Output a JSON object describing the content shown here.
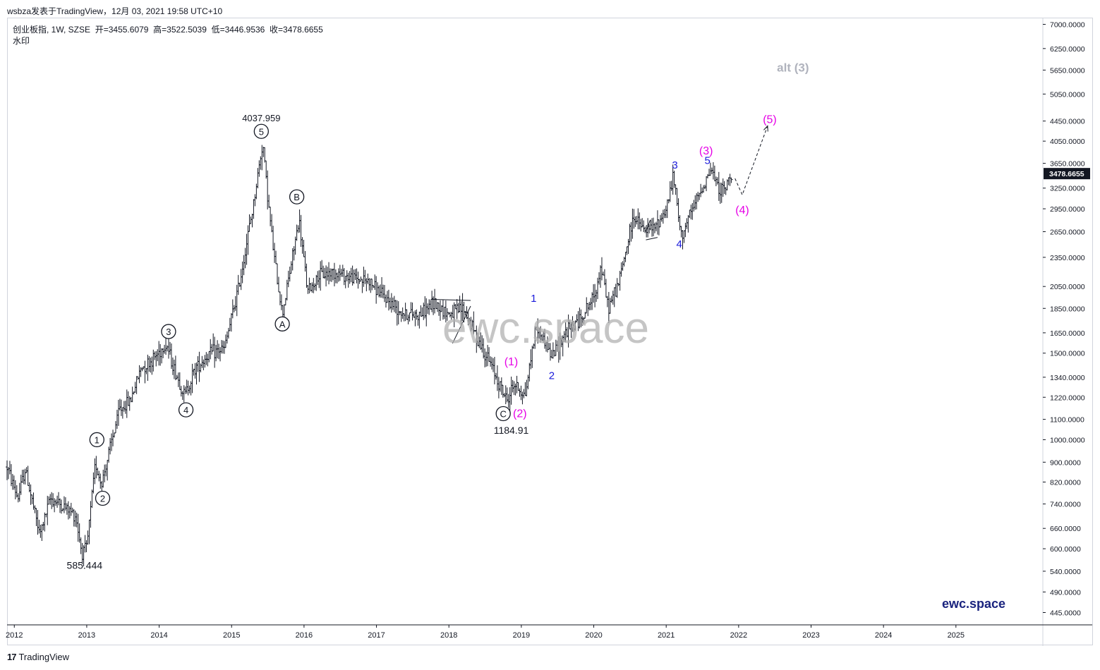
{
  "header": {
    "publisher": "wsbza发表于TradingView，12月 03, 2021 19:58 UTC+10"
  },
  "legend": {
    "title_line": "创业板指, 1W, SZSE",
    "open_label": "开",
    "open": "3455.6079",
    "high_label": "高",
    "high": "3522.5039",
    "low_label": "低",
    "low": "3446.9536",
    "close_label": "收",
    "close": "3478.6655",
    "sub": "水印"
  },
  "watermark": "ewc.space",
  "brand": "ewc.space",
  "footer": {
    "logo": "17",
    "name": "TradingView"
  },
  "colors": {
    "candle": "#131722",
    "blue_labels": "#1a1adb",
    "magenta_labels": "#e600e6",
    "alt_label": "#b0b3bd",
    "price_tag_bg": "#131722"
  },
  "chart_data": {
    "type": "ohlc-bar",
    "timeframe": "1W",
    "y_scale": "log",
    "ylim": [
      420,
      7200
    ],
    "xlim": [
      2011.9,
      2026.2
    ],
    "x_ticks": [
      "2012",
      "2013",
      "2014",
      "2015",
      "2016",
      "2017",
      "2018",
      "2019",
      "2020",
      "2021",
      "2022",
      "2023",
      "2024",
      "2025"
    ],
    "y_ticks": [
      "7000.0000",
      "6250.0000",
      "5650.0000",
      "5050.0000",
      "4450.0000",
      "4050.0000",
      "3650.0000",
      "3250.0000",
      "2950.0000",
      "2650.0000",
      "2350.0000",
      "2050.0000",
      "1850.0000",
      "1650.0000",
      "1500.0000",
      "1340.0000",
      "1220.0000",
      "1100.0000",
      "1000.0000",
      "900.0000",
      "820.0000",
      "740.0000",
      "660.0000",
      "600.0000",
      "540.0000",
      "490.0000",
      "445.0000"
    ],
    "last_price": "3478.6655",
    "series_path": [
      [
        2011.9,
        880
      ],
      [
        2012.05,
        760
      ],
      [
        2012.15,
        870
      ],
      [
        2012.35,
        640
      ],
      [
        2012.5,
        760
      ],
      [
        2012.75,
        720
      ],
      [
        2012.85,
        700
      ],
      [
        2012.93,
        590
      ],
      [
        2013.0,
        600
      ],
      [
        2013.12,
        900
      ],
      [
        2013.2,
        810
      ],
      [
        2013.45,
        1150
      ],
      [
        2013.6,
        1200
      ],
      [
        2013.75,
        1400
      ],
      [
        2013.9,
        1450
      ],
      [
        2014.1,
        1570
      ],
      [
        2014.2,
        1400
      ],
      [
        2014.35,
        1230
      ],
      [
        2014.5,
        1400
      ],
      [
        2014.7,
        1500
      ],
      [
        2014.9,
        1530
      ],
      [
        2015.1,
        2050
      ],
      [
        2015.3,
        3000
      ],
      [
        2015.43,
        4040
      ],
      [
        2015.5,
        3100
      ],
      [
        2015.58,
        2400
      ],
      [
        2015.7,
        1800
      ],
      [
        2015.85,
        2400
      ],
      [
        2015.93,
        2800
      ],
      [
        2016.05,
        2000
      ],
      [
        2016.2,
        2150
      ],
      [
        2016.4,
        2200
      ],
      [
        2016.6,
        2150
      ],
      [
        2016.9,
        2100
      ],
      [
        2017.1,
        1950
      ],
      [
        2017.4,
        1800
      ],
      [
        2017.6,
        1800
      ],
      [
        2017.8,
        1900
      ],
      [
        2018.0,
        1800
      ],
      [
        2018.2,
        1850
      ],
      [
        2018.4,
        1600
      ],
      [
        2018.6,
        1400
      ],
      [
        2018.8,
        1200
      ],
      [
        2018.9,
        1300
      ],
      [
        2019.05,
        1230
      ],
      [
        2019.2,
        1700
      ],
      [
        2019.35,
        1560
      ],
      [
        2019.42,
        1470
      ],
      [
        2019.6,
        1650
      ],
      [
        2019.8,
        1750
      ],
      [
        2020.0,
        1950
      ],
      [
        2020.1,
        2250
      ],
      [
        2020.2,
        1850
      ],
      [
        2020.35,
        2100
      ],
      [
        2020.5,
        2650
      ],
      [
        2020.55,
        2850
      ],
      [
        2020.7,
        2650
      ],
      [
        2020.85,
        2700
      ],
      [
        2021.0,
        2950
      ],
      [
        2021.1,
        3450
      ],
      [
        2021.2,
        2600
      ],
      [
        2021.35,
        2900
      ],
      [
        2021.55,
        3400
      ],
      [
        2021.62,
        3550
      ],
      [
        2021.7,
        3300
      ],
      [
        2021.8,
        3200
      ],
      [
        2021.9,
        3478
      ]
    ],
    "projection": [
      [
        2021.95,
        3400
      ],
      [
        2022.05,
        3150
      ],
      [
        2022.4,
        4350
      ]
    ],
    "triangles": [
      {
        "top": [
          [
            2017.75,
            1930
          ],
          [
            2018.3,
            1920
          ]
        ],
        "bottom": [
          [
            2018.05,
            1570
          ],
          [
            2018.3,
            1870
          ]
        ]
      },
      {
        "top": [
          [
            2020.72,
            2650
          ],
          [
            2020.78,
            2800
          ]
        ],
        "bottom": [
          [
            2020.72,
            2550
          ],
          [
            2020.88,
            2580
          ]
        ]
      }
    ],
    "annotations": [
      {
        "text": "1",
        "circled": true,
        "x": 2013.14,
        "y": 1000,
        "color": "#131722"
      },
      {
        "text": "2",
        "circled": true,
        "x": 2013.22,
        "y": 760,
        "color": "#131722"
      },
      {
        "text": "3",
        "circled": true,
        "x": 2014.13,
        "y": 1660,
        "color": "#131722"
      },
      {
        "text": "4",
        "circled": true,
        "x": 2014.37,
        "y": 1150,
        "color": "#131722"
      },
      {
        "text": "5",
        "circled": true,
        "x": 2015.41,
        "y": 4240,
        "color": "#131722"
      },
      {
        "text": "A",
        "circled": true,
        "x": 2015.7,
        "y": 1720,
        "color": "#131722"
      },
      {
        "text": "B",
        "circled": true,
        "x": 2015.9,
        "y": 3120,
        "color": "#131722"
      },
      {
        "text": "C",
        "circled": true,
        "x": 2018.75,
        "y": 1130,
        "color": "#131722"
      },
      {
        "text": "4037.959",
        "circled": false,
        "x": 2015.41,
        "y": 4520,
        "color": "#131722",
        "size": 13
      },
      {
        "text": "585.444",
        "circled": false,
        "x": 2012.97,
        "y": 555,
        "color": "#131722",
        "size": 14
      },
      {
        "text": "1184.91",
        "circled": false,
        "x": 2018.86,
        "y": 1045,
        "color": "#131722",
        "size": 14
      },
      {
        "text": "(1)",
        "circled": false,
        "x": 2018.86,
        "y": 1440,
        "color": "#e600e6",
        "size": 16
      },
      {
        "text": "(2)",
        "circled": false,
        "x": 2018.98,
        "y": 1130,
        "color": "#e600e6",
        "size": 16
      },
      {
        "text": "(3)",
        "circled": false,
        "x": 2021.55,
        "y": 3870,
        "color": "#e600e6",
        "size": 16
      },
      {
        "text": "(4)",
        "circled": false,
        "x": 2022.05,
        "y": 2930,
        "color": "#e600e6",
        "size": 16
      },
      {
        "text": "(5)",
        "circled": false,
        "x": 2022.43,
        "y": 4480,
        "color": "#e600e6",
        "size": 16
      },
      {
        "text": "alt (3)",
        "circled": false,
        "x": 2022.75,
        "y": 5700,
        "color": "#b0b3bd",
        "size": 17,
        "bold": true
      },
      {
        "text": "1",
        "circled": false,
        "x": 2019.17,
        "y": 1940,
        "color": "#1a1adb",
        "size": 15
      },
      {
        "text": "2",
        "circled": false,
        "x": 2019.42,
        "y": 1350,
        "color": "#1a1adb",
        "size": 15
      },
      {
        "text": "3",
        "circled": false,
        "x": 2021.12,
        "y": 3620,
        "color": "#1a1adb",
        "size": 15
      },
      {
        "text": "4",
        "circled": false,
        "x": 2021.18,
        "y": 2500,
        "color": "#1a1adb",
        "size": 15
      },
      {
        "text": "5",
        "circled": false,
        "x": 2021.57,
        "y": 3700,
        "color": "#1a1adb",
        "size": 15
      }
    ]
  }
}
